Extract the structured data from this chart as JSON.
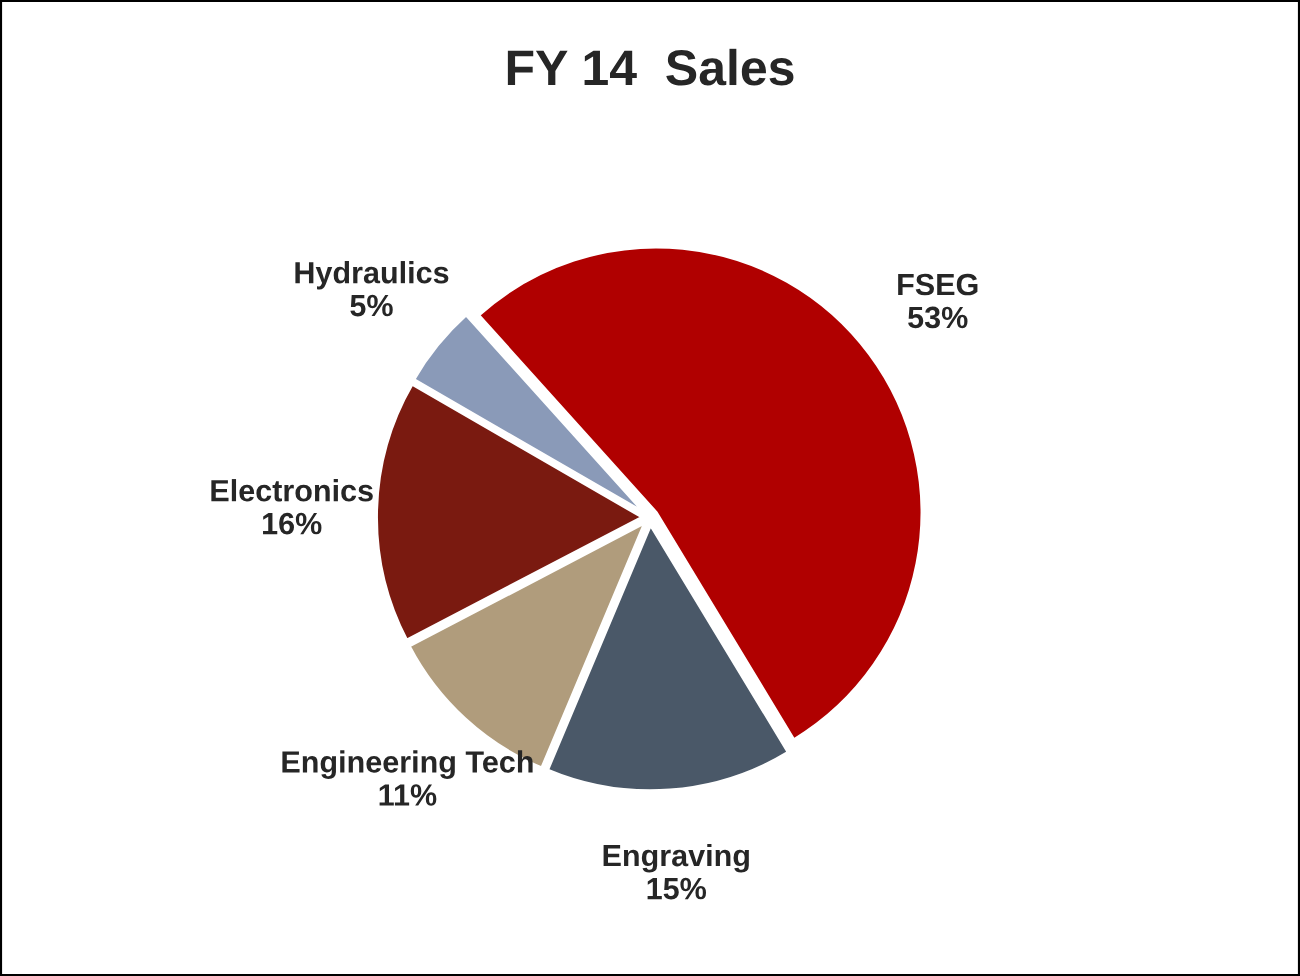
{
  "chart_data": {
    "type": "pie",
    "title": "FY 14  Sales",
    "categories": [
      "FSEG",
      "Engraving",
      "Engineering Tech",
      "Electronics",
      "Hydraulics"
    ],
    "values": [
      53,
      15,
      11,
      16,
      5
    ],
    "value_labels": [
      "53%",
      "15%",
      "11%",
      "16%",
      "5%"
    ],
    "colors": [
      "#b00000",
      "#4a5868",
      "#b09c7c",
      "#7a1a10",
      "#8a9ab8"
    ],
    "legend": false
  }
}
